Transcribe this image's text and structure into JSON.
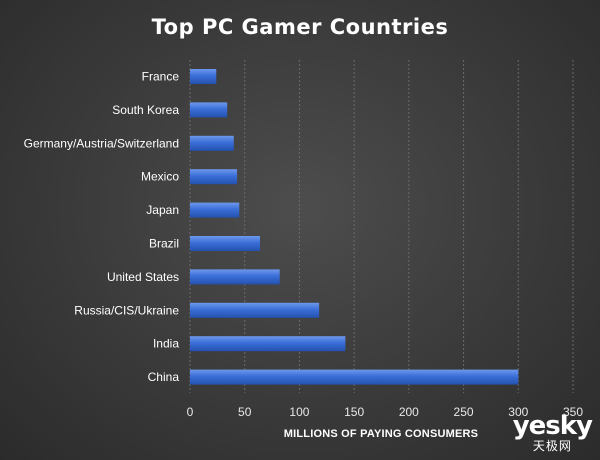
{
  "chart_data": {
    "type": "bar",
    "orientation": "horizontal",
    "title": "Top PC Gamer Countries",
    "xlabel": "MILLIONS OF PAYING CONSUMERS",
    "ylabel": "",
    "xlim": [
      0,
      350
    ],
    "xticks": [
      0,
      50,
      100,
      150,
      200,
      250,
      300,
      350
    ],
    "grid": "vertical-dashed",
    "legend": "none",
    "bar_color": "#3a6fd8",
    "categories": [
      "France",
      "South Korea",
      "Germany/Austria/Switzerland",
      "Mexico",
      "Japan",
      "Brazil",
      "United States",
      "Russia/CIS/Ukraine",
      "India",
      "China"
    ],
    "values": [
      24,
      34,
      40,
      43,
      45,
      64,
      82,
      118,
      142,
      300
    ]
  },
  "watermark": {
    "main": "yesky",
    "sub": "天极网"
  }
}
